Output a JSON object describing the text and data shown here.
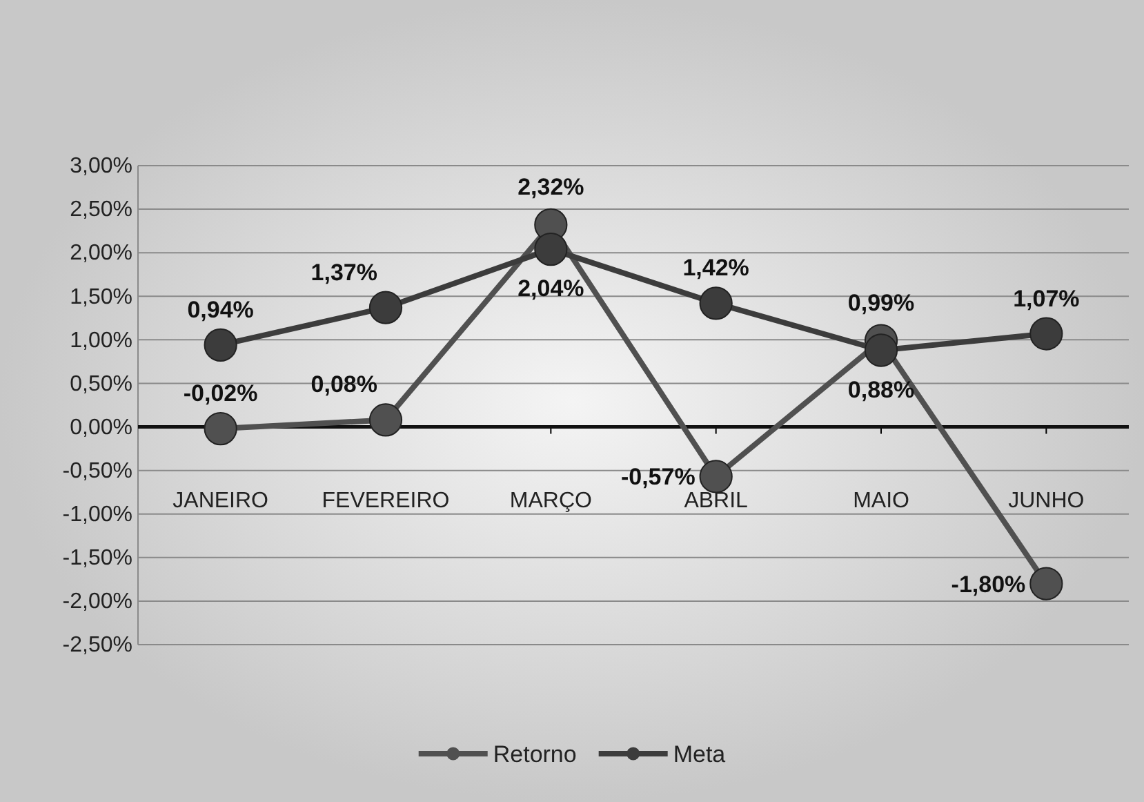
{
  "chart_data": {
    "type": "line",
    "categories": [
      "JANEIRO",
      "FEVEREIRO",
      "MARÇO",
      "ABRIL",
      "MAIO",
      "JUNHO"
    ],
    "series": [
      {
        "name": "Retorno",
        "color": "#505050",
        "values": [
          -0.02,
          0.08,
          2.32,
          -0.57,
          0.99,
          -1.8
        ],
        "value_labels": [
          "-0,02%",
          "0,08%",
          "2,32%",
          "-0,57%",
          "0,99%",
          "-1,80%"
        ]
      },
      {
        "name": "Meta",
        "color": "#3c3c3c",
        "values": [
          0.94,
          1.37,
          2.04,
          1.42,
          0.88,
          1.07
        ],
        "value_labels": [
          "0,94%",
          "1,37%",
          "2,04%",
          "1,42%",
          "0,88%",
          "1,07%"
        ]
      }
    ],
    "ylim": [
      -2.5,
      3.0
    ],
    "yticks": [
      {
        "value": -2.5,
        "label": "-2,50%"
      },
      {
        "value": -2,
        "label": "-2,00%"
      },
      {
        "value": -1.5,
        "label": "-1,50%"
      },
      {
        "value": -1,
        "label": "-1,00%"
      },
      {
        "value": -0.5,
        "label": "-0,50%"
      },
      {
        "value": 0,
        "label": "0,00%"
      },
      {
        "value": 0.5,
        "label": "0,50%"
      },
      {
        "value": 1,
        "label": "1,00%"
      },
      {
        "value": 1.5,
        "label": "1,50%"
      },
      {
        "value": 2,
        "label": "2,00%"
      },
      {
        "value": 2.5,
        "label": "2,50%"
      },
      {
        "value": 3,
        "label": "3,00%"
      }
    ],
    "ref_lines": [
      {
        "axis": "y",
        "value": 0,
        "color": "#111111"
      }
    ],
    "grid": "y",
    "legend": "bottom",
    "marker": "circle",
    "line_style": "solid"
  }
}
